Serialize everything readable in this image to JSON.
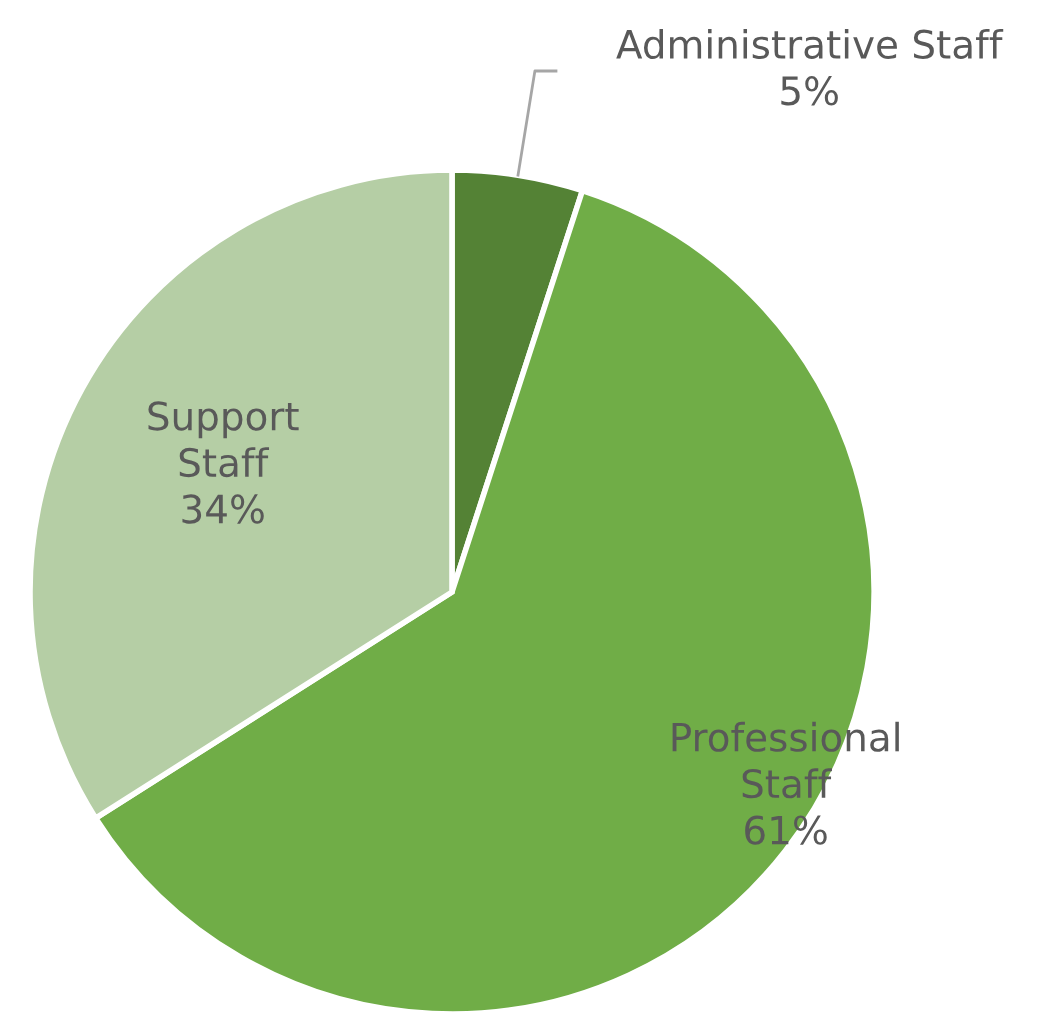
{
  "chart_data": {
    "type": "pie",
    "categories": [
      "Administrative Staff",
      "Professional Staff",
      "Support Staff"
    ],
    "values": [
      5,
      61,
      34
    ],
    "value_labels": [
      "5%",
      "61%",
      "34%"
    ],
    "colors": [
      "#548235",
      "#70ad47",
      "#b5cea5"
    ]
  }
}
